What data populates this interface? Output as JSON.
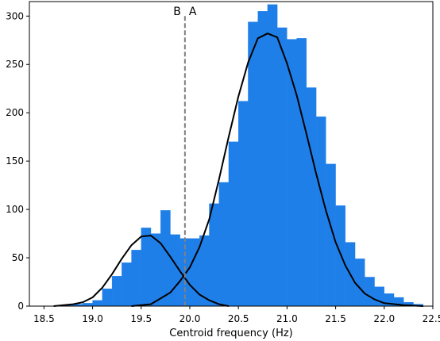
{
  "chart_data": {
    "type": "bar",
    "title": "",
    "xlabel": "Centroid frequency (Hz)",
    "ylabel": "",
    "xlim": [
      18.35,
      22.5
    ],
    "ylim": [
      0,
      315
    ],
    "grid": false,
    "xticks": [
      18.5,
      19.0,
      19.5,
      20.0,
      20.5,
      21.0,
      21.5,
      22.0,
      22.5
    ],
    "xtick_labels": [
      "18.5",
      "19.0",
      "19.5",
      "20.0",
      "20.5",
      "21.0",
      "21.5",
      "22.0",
      "22.5"
    ],
    "yticks": [
      0,
      50,
      100,
      150,
      200,
      250,
      300
    ],
    "ytick_labels": [
      "0",
      "50",
      "100",
      "150",
      "200",
      "250",
      "300"
    ],
    "histogram": {
      "bin_width": 0.1,
      "bin_starts": [
        18.7,
        18.8,
        18.9,
        19.0,
        19.1,
        19.2,
        19.3,
        19.4,
        19.5,
        19.6,
        19.7,
        19.8,
        19.9,
        20.0,
        20.1,
        20.2,
        20.3,
        20.4,
        20.5,
        20.6,
        20.7,
        20.8,
        20.9,
        21.0,
        21.1,
        21.2,
        21.3,
        21.4,
        21.5,
        21.6,
        21.7,
        21.8,
        21.9,
        22.0,
        22.1,
        22.2,
        22.3
      ],
      "counts": [
        1,
        2,
        3,
        6,
        18,
        31,
        45,
        58,
        81,
        75,
        99,
        74,
        70,
        70,
        73,
        106,
        128,
        170,
        212,
        294,
        305,
        312,
        288,
        276,
        277,
        226,
        196,
        147,
        104,
        66,
        49,
        30,
        20,
        13,
        9,
        4,
        2
      ],
      "color": "#1f7fe8"
    },
    "series": [
      {
        "type": "line",
        "color": "#000000",
        "x": [
          18.6,
          18.8,
          18.9,
          19.0,
          19.1,
          19.2,
          19.3,
          19.4,
          19.5,
          19.6,
          19.7,
          19.8,
          19.9,
          20.0,
          20.1,
          20.2,
          20.3,
          20.4
        ],
        "y": [
          0,
          2,
          4,
          9,
          19,
          33,
          49,
          63,
          72,
          73,
          65,
          51,
          36,
          22,
          12,
          6,
          2,
          0
        ]
      },
      {
        "type": "line",
        "color": "#000000",
        "x": [
          19.4,
          19.6,
          19.8,
          19.9,
          20.0,
          20.1,
          20.2,
          20.3,
          20.4,
          20.5,
          20.6,
          20.7,
          20.8,
          20.9,
          21.0,
          21.1,
          21.2,
          21.3,
          21.4,
          21.5,
          21.6,
          21.7,
          21.8,
          21.9,
          22.0,
          22.2,
          22.4
        ],
        "y": [
          0,
          2,
          14,
          26,
          40,
          61,
          90,
          131,
          175,
          217,
          252,
          277,
          282,
          278,
          251,
          218,
          178,
          137,
          99,
          66,
          42,
          24,
          13,
          7,
          3,
          1,
          0
        ]
      }
    ],
    "threshold": {
      "x": 19.95,
      "color": "#808080",
      "style": "dashed"
    },
    "annotations": [
      {
        "text": "B",
        "x": 19.87,
        "y": 305
      },
      {
        "text": "A",
        "x": 20.03,
        "y": 305
      }
    ]
  }
}
